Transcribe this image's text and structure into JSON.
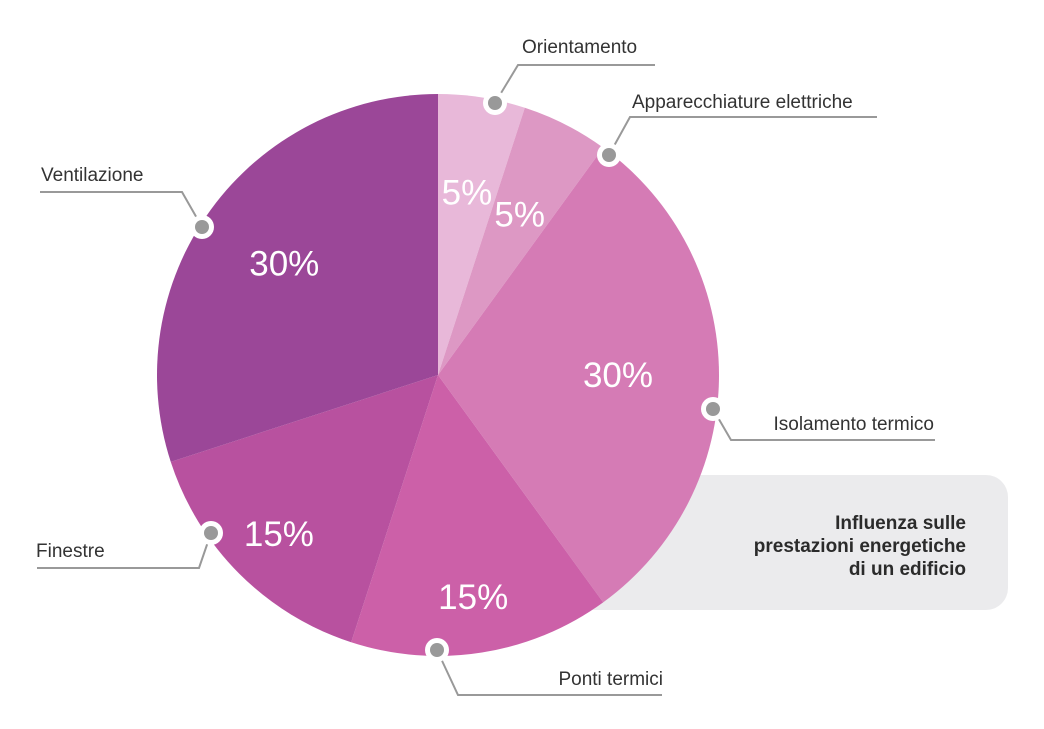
{
  "caption": {
    "lines": [
      "Influenza sulle",
      "prestazioni energetiche",
      "di un edificio"
    ],
    "background": "#ebebed"
  },
  "chart_data": {
    "type": "pie",
    "start_angle_deg": 0,
    "direction": "clockwise",
    "slices": [
      {
        "label": "Orientamento",
        "value": 5,
        "display": "5%",
        "color": "#e8b8d9"
      },
      {
        "label": "Apparecchiature elettriche",
        "value": 5,
        "display": "5%",
        "color": "#dd98c4"
      },
      {
        "label": "Isolamento termico",
        "value": 30,
        "display": "30%",
        "color": "#d57bb5"
      },
      {
        "label": "Ponti termici",
        "value": 15,
        "display": "15%",
        "color": "#cc60a8"
      },
      {
        "label": "Finestre",
        "value": 15,
        "display": "15%",
        "color": "#b8519f"
      },
      {
        "label": "Ventilazione",
        "value": 30,
        "display": "30%",
        "color": "#9b4798"
      }
    ],
    "marker_color": "#999999",
    "leader_color": "#999999"
  }
}
